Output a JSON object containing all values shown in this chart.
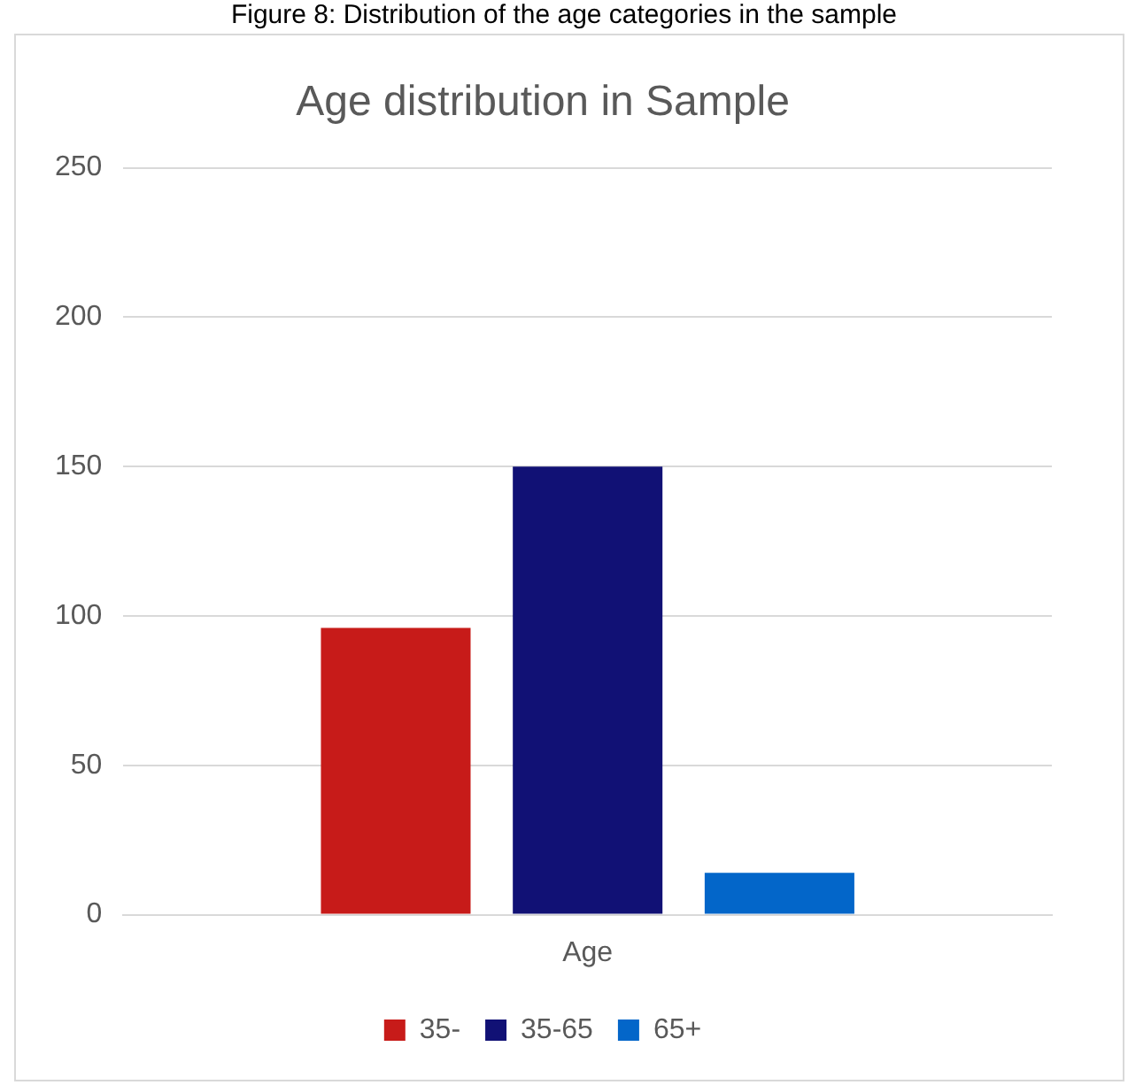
{
  "chart_data": {
    "type": "bar",
    "title": "Age distribution in Sample",
    "annotations": [
      "Figure 8: Distribution of the age categories in the sample"
    ],
    "categories": [
      "Age"
    ],
    "series": [
      {
        "name": "35-",
        "color": "#c71b19",
        "values": [
          96
        ]
      },
      {
        "name": "35-65",
        "color": "#111175",
        "values": [
          150
        ]
      },
      {
        "name": "65+",
        "color": "#0366c9",
        "values": [
          14
        ]
      }
    ],
    "ylim": [
      0,
      250
    ],
    "yticks": [
      0,
      50,
      100,
      150,
      200,
      250
    ],
    "grid": "y",
    "legend": "bottom"
  }
}
